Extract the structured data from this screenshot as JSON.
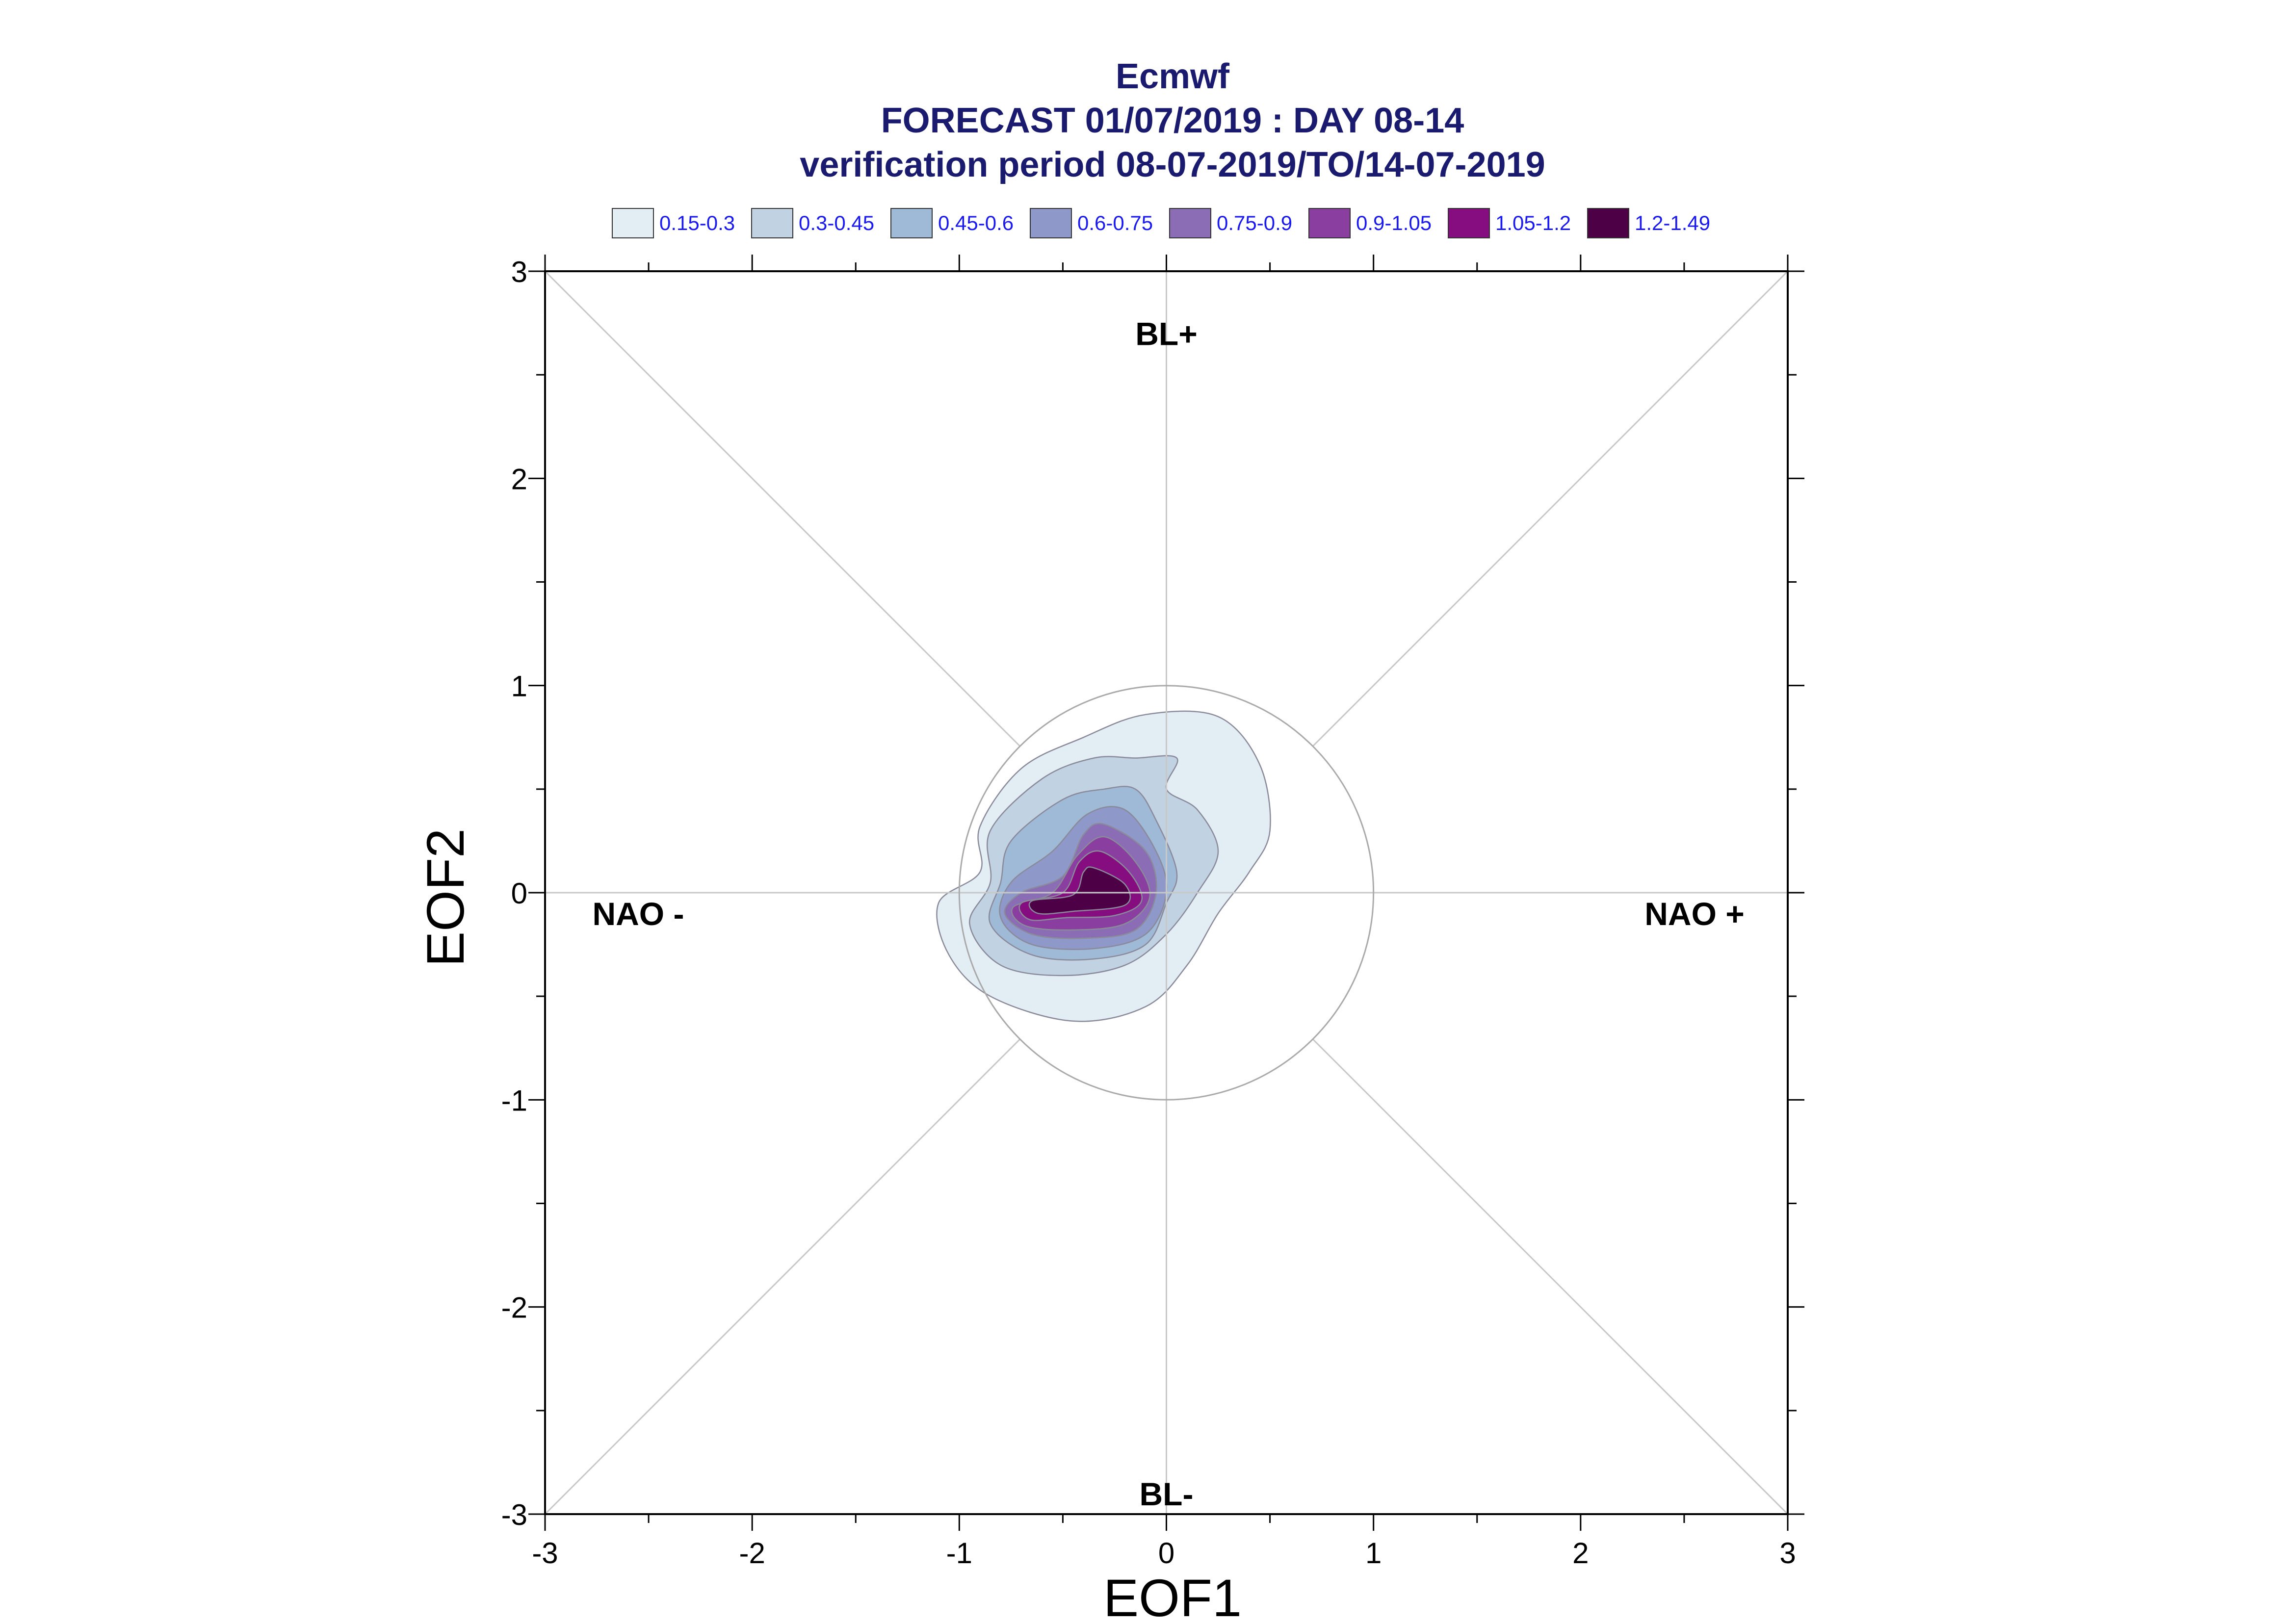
{
  "chart_data": {
    "type": "contour",
    "title": "Ecmwf",
    "subtitle_1": "FORECAST 01/07/2019 : DAY 08-14",
    "subtitle_2": "verification period 08-07-2019/TO/14-07-2019",
    "xlabel": "EOF1",
    "ylabel": "EOF2",
    "xlim": [
      -3,
      3
    ],
    "ylim": [
      -3,
      3
    ],
    "xticks": [
      "-3",
      "-2",
      "-1",
      "0",
      "1",
      "2",
      "3"
    ],
    "yticks": [
      "3",
      "2",
      "1",
      "0",
      "-1",
      "-2",
      "-3"
    ],
    "legend_position": "top",
    "legend": [
      {
        "label": "0.15-0.3",
        "color": "#e2edf4"
      },
      {
        "label": "0.3-0.45",
        "color": "#c1d3e3"
      },
      {
        "label": "0.45-0.6",
        "color": "#9fbad7"
      },
      {
        "label": "0.6-0.75",
        "color": "#8e98c9"
      },
      {
        "label": "0.75-0.9",
        "color": "#8b6db5"
      },
      {
        "label": "0.9-1.05",
        "color": "#8a3fa0"
      },
      {
        "label": "1.05-1.2",
        "color": "#850d7f"
      },
      {
        "label": "1.2-1.49",
        "color": "#4d0046"
      }
    ],
    "regime_labels": [
      {
        "label": "BL+",
        "x": 0,
        "y": 2.7
      },
      {
        "label": "BL-",
        "x": 0,
        "y": -2.9
      },
      {
        "label": "NAO -",
        "x": -2.55,
        "y": -0.1
      },
      {
        "label": "NAO +",
        "x": 2.55,
        "y": -0.1
      }
    ],
    "reference_circle_radius": 1,
    "contours": [
      {
        "level": "0.15-0.3",
        "points": [
          [
            0.25,
            0.85
          ],
          [
            0.45,
            0.62
          ],
          [
            0.5,
            0.3
          ],
          [
            0.4,
            0.1
          ],
          [
            0.25,
            -0.1
          ],
          [
            0.1,
            -0.35
          ],
          [
            -0.1,
            -0.55
          ],
          [
            -0.45,
            -0.62
          ],
          [
            -0.85,
            -0.5
          ],
          [
            -1.05,
            -0.3
          ],
          [
            -1.1,
            -0.05
          ],
          [
            -0.9,
            0.1
          ],
          [
            -0.9,
            0.32
          ],
          [
            -0.7,
            0.6
          ],
          [
            -0.4,
            0.75
          ],
          [
            -0.1,
            0.86
          ]
        ]
      },
      {
        "level": "0.3-0.45",
        "points": [
          [
            -0.15,
            0.65
          ],
          [
            0.05,
            0.65
          ],
          [
            0.0,
            0.5
          ],
          [
            0.15,
            0.4
          ],
          [
            0.25,
            0.2
          ],
          [
            0.15,
            0.0
          ],
          [
            0.0,
            -0.2
          ],
          [
            -0.2,
            -0.35
          ],
          [
            -0.5,
            -0.4
          ],
          [
            -0.8,
            -0.35
          ],
          [
            -0.95,
            -0.15
          ],
          [
            -0.85,
            0.05
          ],
          [
            -0.85,
            0.3
          ],
          [
            -0.6,
            0.55
          ],
          [
            -0.35,
            0.65
          ]
        ]
      },
      {
        "level": "0.45-0.6",
        "points": [
          [
            -0.15,
            0.5
          ],
          [
            -0.05,
            0.35
          ],
          [
            0.05,
            0.1
          ],
          [
            0.0,
            -0.05
          ],
          [
            -0.1,
            -0.25
          ],
          [
            -0.35,
            -0.32
          ],
          [
            -0.65,
            -0.3
          ],
          [
            -0.85,
            -0.15
          ],
          [
            -0.8,
            0.05
          ],
          [
            -0.75,
            0.25
          ],
          [
            -0.5,
            0.45
          ],
          [
            -0.3,
            0.5
          ]
        ]
      },
      {
        "level": "0.6-0.75",
        "points": [
          [
            -0.2,
            0.4
          ],
          [
            -0.05,
            0.2
          ],
          [
            0.0,
            0.0
          ],
          [
            -0.1,
            -0.2
          ],
          [
            -0.35,
            -0.27
          ],
          [
            -0.65,
            -0.25
          ],
          [
            -0.8,
            -0.12
          ],
          [
            -0.75,
            0.05
          ],
          [
            -0.55,
            0.2
          ],
          [
            -0.38,
            0.38
          ]
        ]
      },
      {
        "level": "0.75-0.9",
        "points": [
          [
            -0.3,
            0.33
          ],
          [
            -0.1,
            0.2
          ],
          [
            -0.05,
            0.0
          ],
          [
            -0.15,
            -0.18
          ],
          [
            -0.4,
            -0.22
          ],
          [
            -0.65,
            -0.2
          ],
          [
            -0.78,
            -0.1
          ],
          [
            -0.7,
            0.0
          ],
          [
            -0.5,
            0.08
          ],
          [
            -0.4,
            0.28
          ]
        ]
      },
      {
        "level": "0.9-1.05",
        "points": [
          [
            -0.3,
            0.27
          ],
          [
            -0.15,
            0.15
          ],
          [
            -0.08,
            -0.02
          ],
          [
            -0.2,
            -0.15
          ],
          [
            -0.45,
            -0.18
          ],
          [
            -0.68,
            -0.16
          ],
          [
            -0.74,
            -0.07
          ],
          [
            -0.55,
            0.0
          ],
          [
            -0.43,
            0.18
          ]
        ]
      },
      {
        "level": "1.05-1.2",
        "points": [
          [
            -0.32,
            0.2
          ],
          [
            -0.18,
            0.1
          ],
          [
            -0.12,
            -0.04
          ],
          [
            -0.25,
            -0.11
          ],
          [
            -0.48,
            -0.12
          ],
          [
            -0.66,
            -0.13
          ],
          [
            -0.7,
            -0.05
          ],
          [
            -0.5,
            0.0
          ],
          [
            -0.42,
            0.15
          ]
        ]
      },
      {
        "level": "1.2-1.49",
        "points": [
          [
            -0.35,
            0.12
          ],
          [
            -0.2,
            0.04
          ],
          [
            -0.2,
            -0.06
          ],
          [
            -0.45,
            -0.09
          ],
          [
            -0.62,
            -0.1
          ],
          [
            -0.65,
            -0.04
          ],
          [
            -0.45,
            -0.01
          ],
          [
            -0.4,
            0.1
          ]
        ]
      }
    ]
  }
}
